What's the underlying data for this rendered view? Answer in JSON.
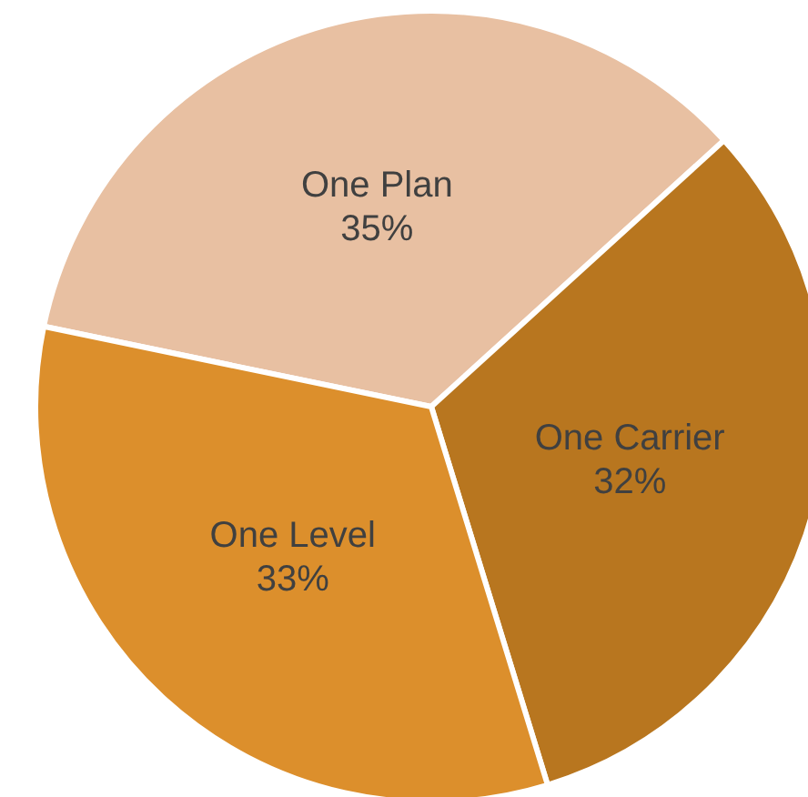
{
  "chart_data": {
    "type": "pie",
    "categories": [
      "One Plan",
      "One Carrier",
      "One Level"
    ],
    "values": [
      35,
      32,
      33
    ],
    "value_labels": [
      "35%",
      "32%",
      "33%"
    ],
    "colors": [
      "#e8c0a2",
      "#b8761f",
      "#dc8f2c"
    ],
    "legend": false
  }
}
